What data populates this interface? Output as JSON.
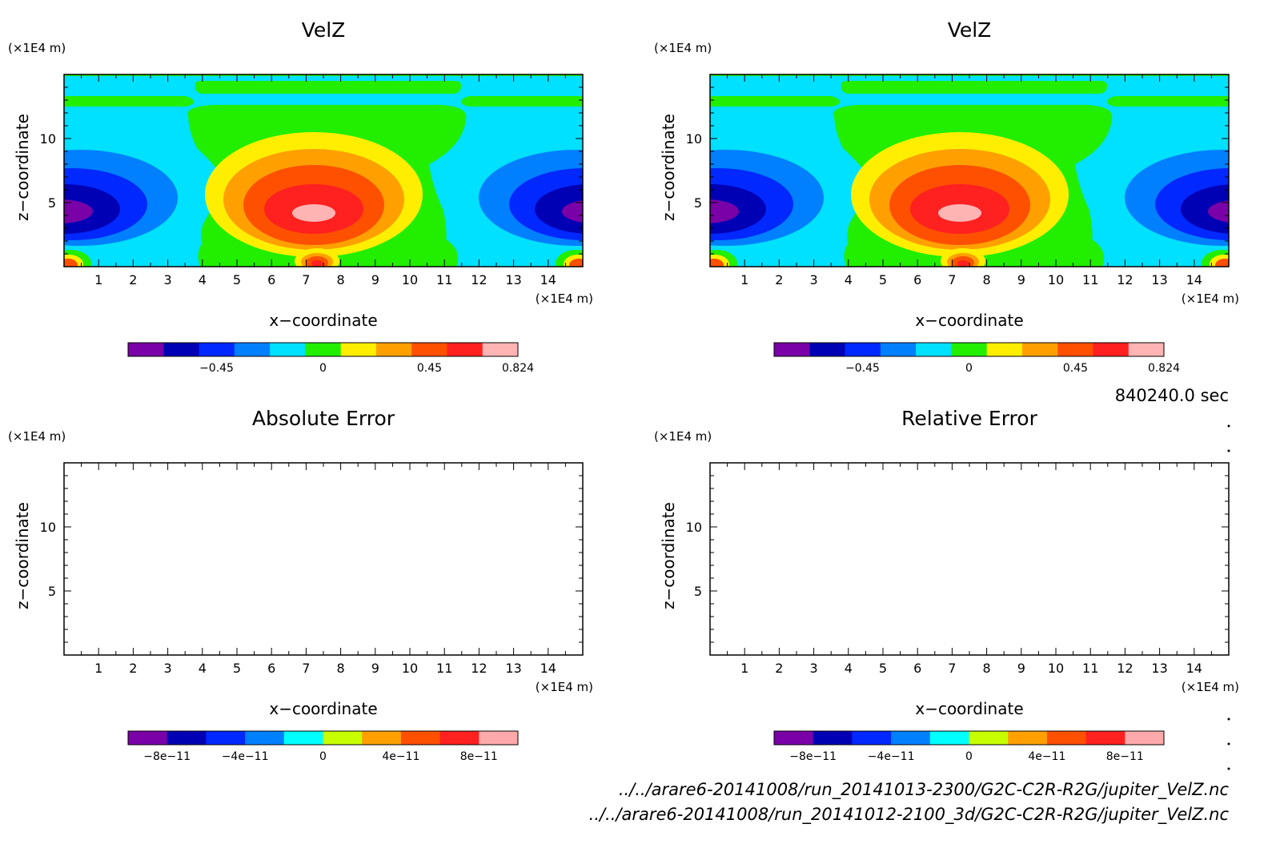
{
  "time_label": "840240.0 sec",
  "files": [
    "../../arare6-20141008/run_20141013-2300/G2C-C2R-R2G/jupiter_VelZ.nc",
    "../../arare6-20141008/run_20141012-2100_3d/G2C-C2R-R2G/jupiter_VelZ.nc"
  ],
  "palette_velz": [
    "#7a00a8",
    "#0000b4",
    "#0028ff",
    "#0080ff",
    "#00e0ff",
    "#22ee00",
    "#ffee00",
    "#ffa000",
    "#ff5000",
    "#ff2020",
    "#ffb4b4"
  ],
  "palette_err": [
    "#7a00a8",
    "#0000b4",
    "#0028ff",
    "#0080ff",
    "#00ffff",
    "#c8ff00",
    "#ffa000",
    "#ff5000",
    "#ff2020",
    "#ffaaaa"
  ],
  "chart_data": [
    {
      "type": "heatmap",
      "title": "VelZ",
      "xlabel": "x−coordinate",
      "ylabel": "z−coordinate",
      "x_unit": "(×1E4 m)",
      "y_unit": "(×1E4 m)",
      "xlim": [
        0,
        15
      ],
      "ylim": [
        0,
        15
      ],
      "x_ticks": [
        "1",
        "2",
        "3",
        "4",
        "5",
        "6",
        "7",
        "8",
        "9",
        "10",
        "11",
        "12",
        "13",
        "14"
      ],
      "y_ticks": [
        "5",
        "10"
      ],
      "colorbar_ticks": [
        "−0.45",
        "0",
        "0.45",
        "0.824"
      ],
      "colorbar_range": [
        -0.824,
        0.824
      ],
      "blobs": [
        {
          "x": 7.6,
          "z": 4.0,
          "sign": "positive",
          "peak": 0.824
        },
        {
          "x": 0.1,
          "z": 4.0,
          "sign": "negative",
          "peak": -0.75
        },
        {
          "x": 15.0,
          "z": 4.0,
          "sign": "negative",
          "peak": -0.75
        }
      ]
    },
    {
      "type": "heatmap",
      "title": "VelZ",
      "xlabel": "x−coordinate",
      "ylabel": "z−coordinate",
      "x_unit": "(×1E4 m)",
      "y_unit": "(×1E4 m)",
      "xlim": [
        0,
        15
      ],
      "ylim": [
        0,
        15
      ],
      "x_ticks": [
        "1",
        "2",
        "3",
        "4",
        "5",
        "6",
        "7",
        "8",
        "9",
        "10",
        "11",
        "12",
        "13",
        "14"
      ],
      "y_ticks": [
        "5",
        "10"
      ],
      "colorbar_ticks": [
        "−0.45",
        "0",
        "0.45",
        "0.824"
      ],
      "colorbar_range": [
        -0.824,
        0.824
      ],
      "blobs": [
        {
          "x": 7.6,
          "z": 4.0,
          "sign": "positive",
          "peak": 0.824
        },
        {
          "x": 0.1,
          "z": 4.0,
          "sign": "negative",
          "peak": -0.75
        },
        {
          "x": 15.0,
          "z": 4.0,
          "sign": "negative",
          "peak": -0.75
        }
      ]
    },
    {
      "type": "heatmap",
      "title": "Absolute Error",
      "xlabel": "x−coordinate",
      "ylabel": "z−coordinate",
      "x_unit": "(×1E4 m)",
      "y_unit": "(×1E4 m)",
      "xlim": [
        0,
        15
      ],
      "ylim": [
        0,
        15
      ],
      "x_ticks": [
        "1",
        "2",
        "3",
        "4",
        "5",
        "6",
        "7",
        "8",
        "9",
        "10",
        "11",
        "12",
        "13",
        "14"
      ],
      "y_ticks": [
        "5",
        "10"
      ],
      "colorbar_ticks": [
        "−8e−11",
        "−4e−11",
        "0",
        "4e−11",
        "8e−11"
      ],
      "colorbar_range": [
        -1e-10,
        1e-10
      ],
      "values": "empty"
    },
    {
      "type": "heatmap",
      "title": "Relative Error",
      "xlabel": "x−coordinate",
      "ylabel": "z−coordinate",
      "x_unit": "(×1E4 m)",
      "y_unit": "(×1E4 m)",
      "xlim": [
        0,
        15
      ],
      "ylim": [
        0,
        15
      ],
      "x_ticks": [
        "1",
        "2",
        "3",
        "4",
        "5",
        "6",
        "7",
        "8",
        "9",
        "10",
        "11",
        "12",
        "13",
        "14"
      ],
      "y_ticks": [
        "5",
        "10"
      ],
      "colorbar_ticks": [
        "−8e−11",
        "−4e−11",
        "0",
        "4e−11",
        "8e−11"
      ],
      "colorbar_range": [
        -1e-10,
        1e-10
      ],
      "values": "empty"
    }
  ]
}
